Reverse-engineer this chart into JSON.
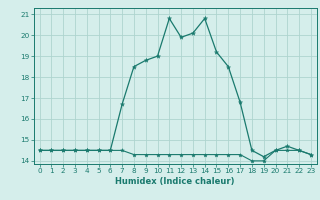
{
  "x": [
    0,
    1,
    2,
    3,
    4,
    5,
    6,
    7,
    8,
    9,
    10,
    11,
    12,
    13,
    14,
    15,
    16,
    17,
    18,
    19,
    20,
    21,
    22,
    23
  ],
  "y_curve": [
    14.5,
    14.5,
    14.5,
    14.5,
    14.5,
    14.5,
    14.5,
    16.7,
    18.5,
    18.8,
    19.0,
    20.8,
    19.9,
    20.1,
    20.8,
    19.2,
    18.5,
    16.8,
    14.5,
    14.2,
    14.5,
    14.7,
    14.5,
    14.3
  ],
  "y_flat": [
    14.5,
    14.5,
    14.5,
    14.5,
    14.5,
    14.5,
    14.5,
    14.5,
    14.3,
    14.3,
    14.3,
    14.3,
    14.3,
    14.3,
    14.3,
    14.3,
    14.3,
    14.3,
    14.0,
    14.0,
    14.5,
    14.5,
    14.5,
    14.3
  ],
  "line_color": "#1a7a6e",
  "bg_color": "#d5eeeb",
  "grid_color": "#aed4cf",
  "xlabel": "Humidex (Indice chaleur)",
  "xlim": [
    -0.5,
    23.5
  ],
  "ylim": [
    13.85,
    21.3
  ],
  "yticks": [
    14,
    15,
    16,
    17,
    18,
    19,
    20,
    21
  ],
  "xticks": [
    0,
    1,
    2,
    3,
    4,
    5,
    6,
    7,
    8,
    9,
    10,
    11,
    12,
    13,
    14,
    15,
    16,
    17,
    18,
    19,
    20,
    21,
    22,
    23
  ],
  "xlabel_fontsize": 6.0,
  "tick_fontsize": 5.2
}
